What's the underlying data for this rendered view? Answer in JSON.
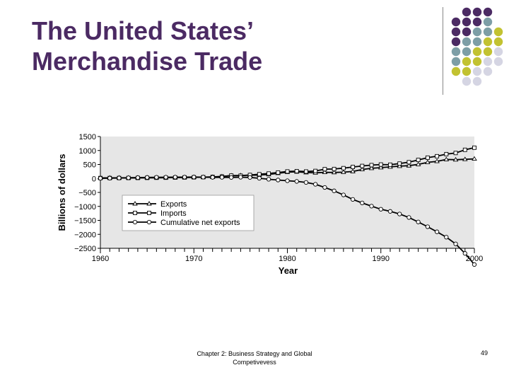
{
  "slide": {
    "title_line1": "The United States’",
    "title_line2": "Merchandise Trade",
    "footer_line1": "Chapter 2: Business Strategy and Global",
    "footer_line2": "Competivevess",
    "page_number": "49"
  },
  "colors": {
    "title": "#4b2a63",
    "dot_purple": "#4b2a63",
    "dot_teal": "#7d9ea6",
    "dot_olive": "#c2c231",
    "dot_light": "#d5d5e3",
    "plot_bg": "#e6e6e6"
  },
  "chart_data": {
    "type": "line",
    "title": "",
    "xlabel": "Year",
    "ylabel": "Billions of dollars",
    "xlim": [
      1960,
      2000
    ],
    "ylim": [
      -2500,
      1500
    ],
    "x_ticks": [
      "1960",
      "1970",
      "1980",
      "1990",
      "2000"
    ],
    "y_ticks": [
      "1500",
      "1000",
      "500",
      "0",
      "−500",
      "−1000",
      "−1500",
      "−2000",
      "−2500"
    ],
    "grid": false,
    "legend_position": "left",
    "x": [
      1960,
      1961,
      1962,
      1963,
      1964,
      1965,
      1966,
      1967,
      1968,
      1969,
      1970,
      1971,
      1972,
      1973,
      1974,
      1975,
      1976,
      1977,
      1978,
      1979,
      1980,
      1981,
      1982,
      1983,
      1984,
      1985,
      1986,
      1987,
      1988,
      1989,
      1990,
      1991,
      1992,
      1993,
      1994,
      1995,
      1996,
      1997,
      1998,
      1999,
      2000
    ],
    "series": [
      {
        "name": "Exports",
        "marker": "triangle",
        "values": [
          20,
          21,
          22,
          23,
          26,
          27,
          30,
          31,
          34,
          36,
          43,
          44,
          49,
          71,
          98,
          107,
          115,
          121,
          142,
          184,
          224,
          237,
          212,
          201,
          219,
          215,
          223,
          250,
          320,
          363,
          387,
          414,
          439,
          456,
          502,
          575,
          612,
          679,
          670,
          684,
          701
        ]
      },
      {
        "name": "Imports",
        "marker": "square",
        "values": [
          15,
          15,
          16,
          17,
          19,
          21,
          25,
          27,
          33,
          36,
          40,
          46,
          56,
          70,
          103,
          98,
          124,
          151,
          176,
          212,
          250,
          261,
          248,
          268,
          332,
          338,
          368,
          410,
          447,
          477,
          498,
          491,
          532,
          581,
          663,
          744,
          795,
          870,
          911,
          1024,
          1100
        ]
      },
      {
        "name": "Cumulative net exports",
        "marker": "circle",
        "values": [
          5,
          11,
          17,
          23,
          30,
          36,
          41,
          45,
          46,
          46,
          49,
          47,
          40,
          41,
          36,
          45,
          36,
          6,
          -28,
          -56,
          -82,
          -106,
          -142,
          -209,
          -322,
          -445,
          -590,
          -750,
          -877,
          -991,
          -1102,
          -1179,
          -1272,
          -1397,
          -1558,
          -1727,
          -1910,
          -2101,
          -2342,
          -2682,
          -3081
        ]
      }
    ]
  },
  "chart_display_values": {
    "comment_free": true
  }
}
